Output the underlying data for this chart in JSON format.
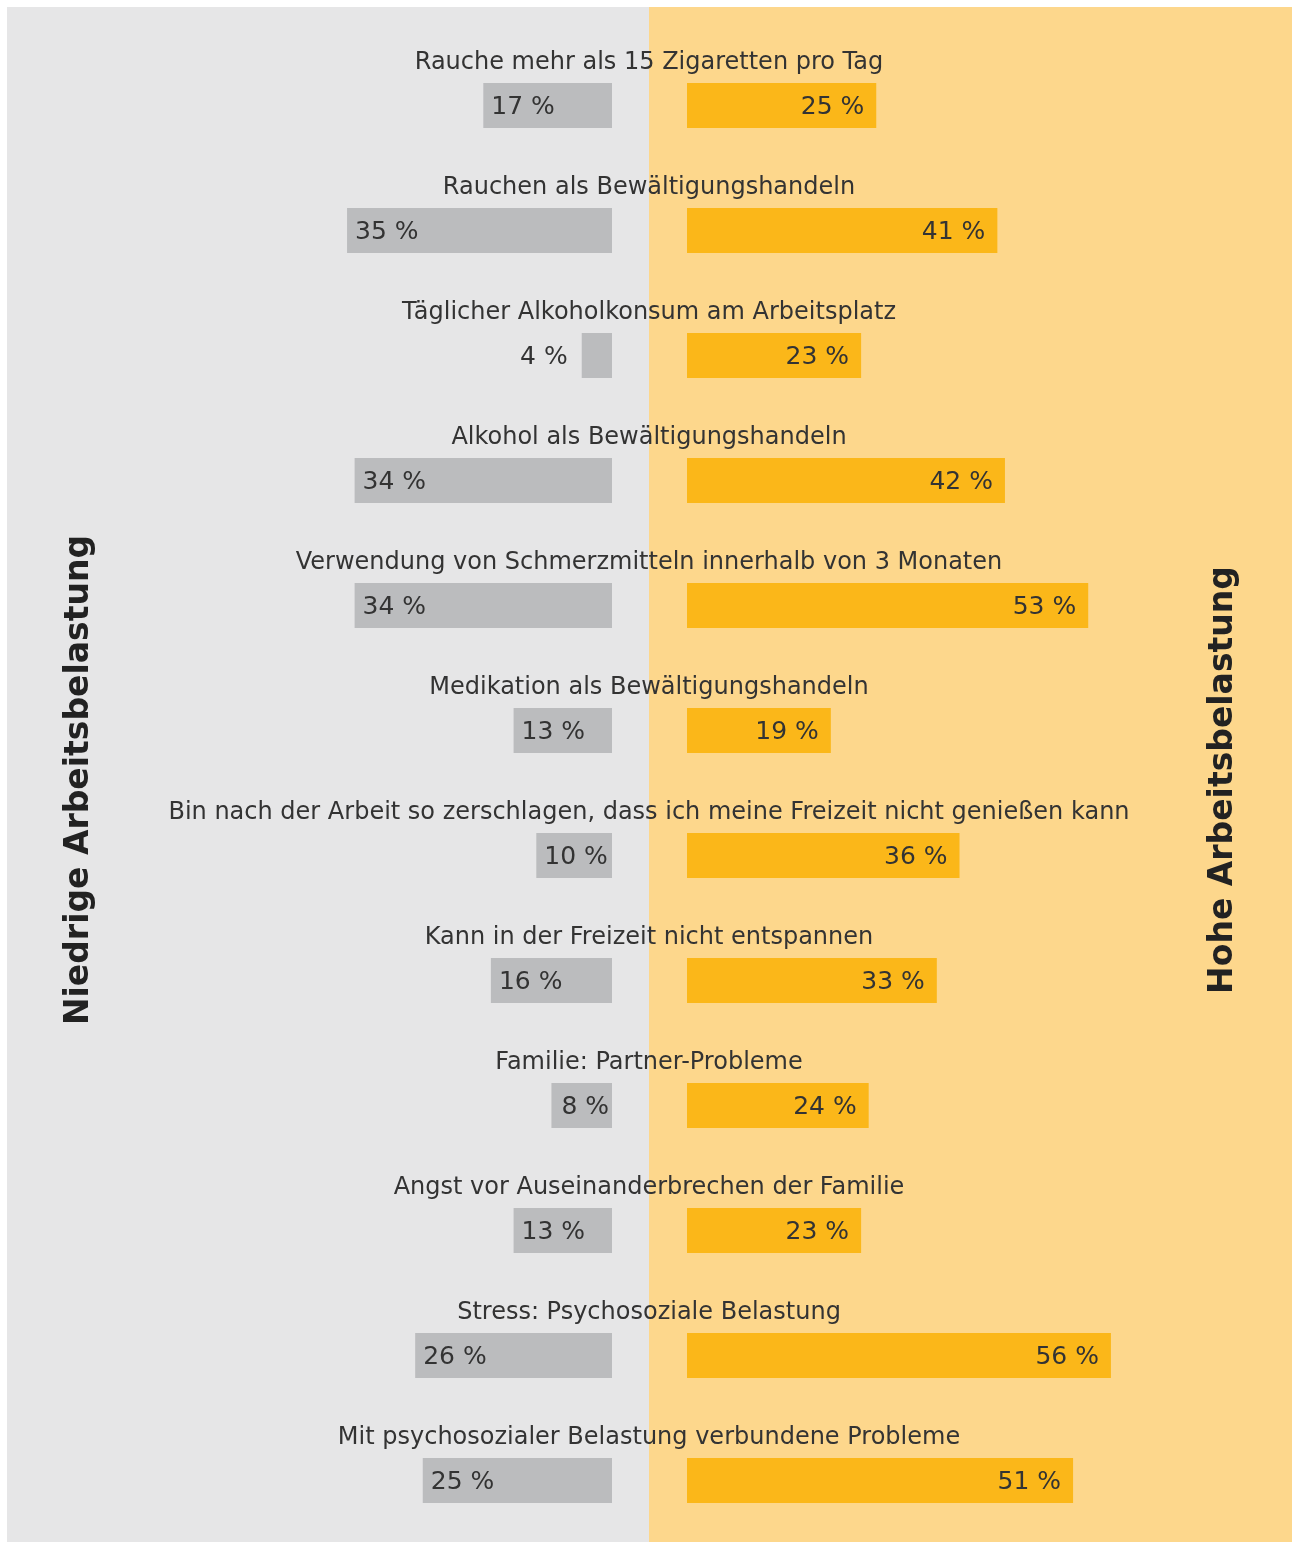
{
  "chart_data": [
    {
      "type": "bar",
      "orientation": "horizontal",
      "categories": [
        "Rauche mehr als 15 Zigaretten pro Tag",
        "Rauchen als Bewältigungshandeln",
        "Täglicher Alkoholkonsum am Arbeitsplatz",
        "Alkohol als Bewältigungshandeln",
        "Verwendung von Schmerzmitteln innerhalb von 3 Monaten",
        "Medikation als Bewältigungshandeln",
        "Bin nach der Arbeit so zerschlagen, dass ich meine Freizeit nicht genießen kann",
        "Kann in der Freizeit nicht entspannen",
        "Familie: Partner-Probleme",
        "Angst vor Auseinanderbrechen der Familie",
        "Stress: Psychosoziale Belastung",
        "Mit psychosozialer Belastung verbundene Probleme"
      ],
      "series": [
        {
          "name": "Niedrige Arbeitsbelastung",
          "color": "#bbbcbe",
          "values": [
            17,
            35,
            4,
            34,
            34,
            13,
            10,
            16,
            8,
            13,
            26,
            25
          ],
          "value_labels": [
            "17 %",
            "35 %",
            "4 %",
            "34 %",
            "34 %",
            "13 %",
            "10 %",
            "16 %",
            "8 %",
            "13 %",
            "26 %",
            "25 %"
          ]
        }
      ]
    },
    {
      "type": "bar",
      "orientation": "horizontal",
      "categories": [
        null,
        null,
        null,
        null,
        null,
        null,
        null,
        null,
        null,
        null,
        null,
        null
      ],
      "series": [
        {
          "name": "Hohe Arbeitsbelastung",
          "color": "#fbb719",
          "values": [
            25,
            41,
            23,
            42,
            53,
            19,
            36,
            33,
            24,
            23,
            56,
            51
          ],
          "value_labels": [
            "25 %",
            "41 %",
            "23 %",
            "42 %",
            "53 %",
            "19 %",
            "36 %",
            "33 %",
            "24 %",
            "23 %",
            "56 %",
            "51 %"
          ]
        }
      ]
    }
  ]
}
